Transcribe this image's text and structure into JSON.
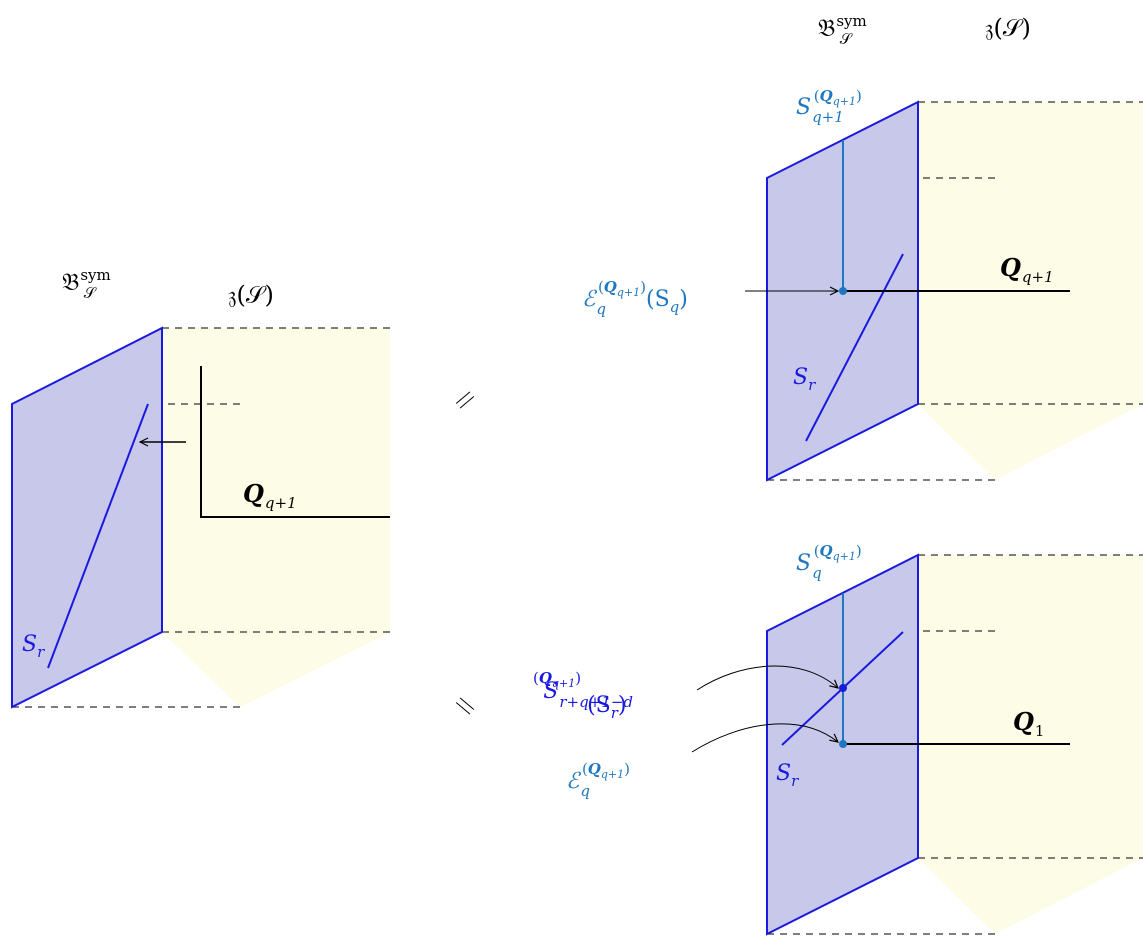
{
  "colors": {
    "plane_fill": "#c8c8ea",
    "plane_stroke": "#1a1adf",
    "bulk_fill": "#fdfce6",
    "teal": "#1f77c0",
    "black": "#000000",
    "dash": "#333333"
  },
  "left_panel": {
    "boundary_label": {
      "base": "𝔅",
      "sup": "sym",
      "sub": "𝒮"
    },
    "bulk_label": {
      "text": "𝔷(𝒮)"
    },
    "line_label": {
      "base": "Q",
      "sub": "q+1"
    },
    "surface_label": {
      "base": "S",
      "sub": "r"
    }
  },
  "equals_signs": [
    {
      "symbol": "="
    },
    {
      "symbol": "="
    }
  ],
  "top_right": {
    "boundary_label": {
      "base": "𝔅",
      "sup": "sym",
      "sub": "𝒮"
    },
    "bulk_label": {
      "text": "𝔷(𝒮)"
    },
    "vertical_label": {
      "base": "S",
      "sub": "q+1",
      "sup_base": "Q",
      "sup_sub": "q+1"
    },
    "map_label": {
      "base": "ℰ",
      "sub": "q",
      "sup_base": "Q",
      "sup_sub": "q+1",
      "arg": "(S",
      "arg_sub": "q",
      "arg_close": ")"
    },
    "line_label": {
      "base": "Q",
      "sub": "q+1"
    },
    "surface_label": {
      "base": "S",
      "sub": "r"
    }
  },
  "bottom_right": {
    "vertical_label": {
      "base": "S",
      "sub": "q",
      "sup_base": "Q",
      "sup_sub": "q+1"
    },
    "intersection_label": {
      "base": "S",
      "sub": "r+q+1−d",
      "sup_base": "Q",
      "sup_sub": "q+1",
      "arg": "(S",
      "arg_sub": "r",
      "arg_close": ")"
    },
    "map_label": {
      "base": "ℰ",
      "sub": "q",
      "sup_base": "Q",
      "sup_sub": "q+1"
    },
    "line_label": {
      "base": "Q",
      "sub": "1"
    },
    "surface_label": {
      "base": "S",
      "sub": "r"
    }
  }
}
